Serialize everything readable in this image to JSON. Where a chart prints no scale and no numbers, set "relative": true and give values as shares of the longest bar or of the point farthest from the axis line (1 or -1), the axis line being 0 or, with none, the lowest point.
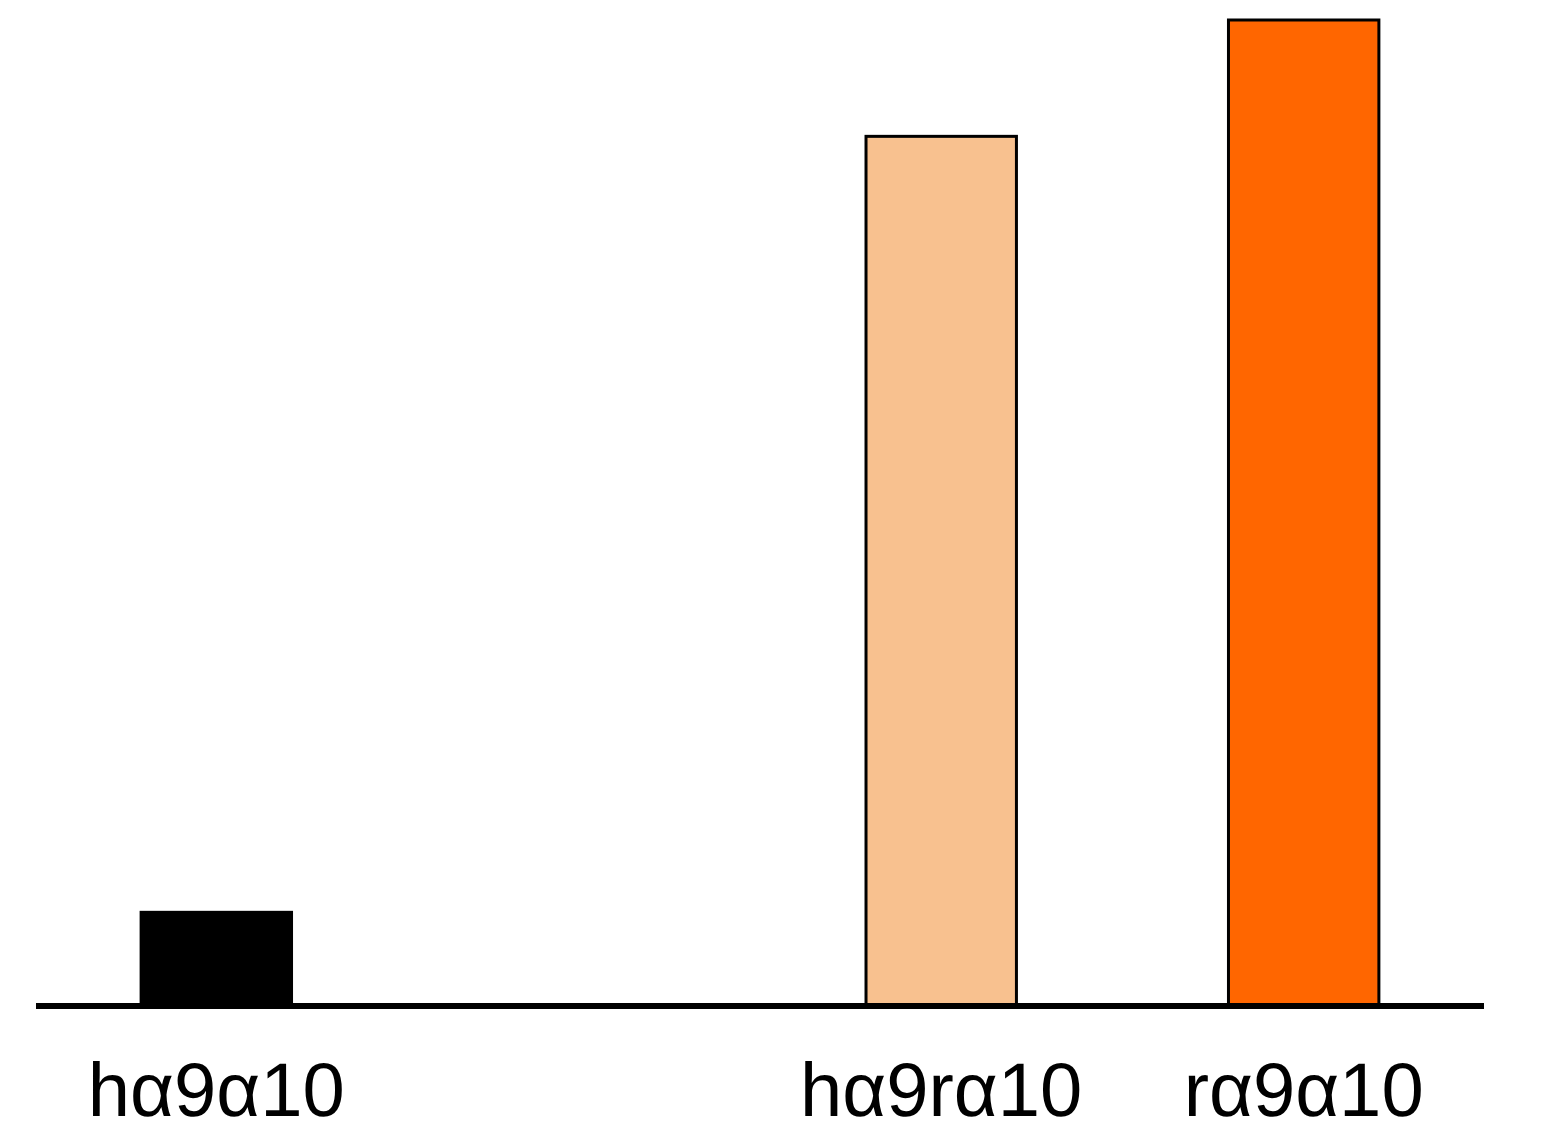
{
  "chart_data": {
    "type": "bar",
    "relative": true,
    "categories": [
      "hα9α10",
      null,
      "hα9rα10",
      "rα9α10"
    ],
    "values": [
      0.095,
      null,
      0.882,
      1
    ],
    "colors": [
      "#000000",
      "#000000",
      "#f8c18f",
      "#ff6600"
    ]
  }
}
